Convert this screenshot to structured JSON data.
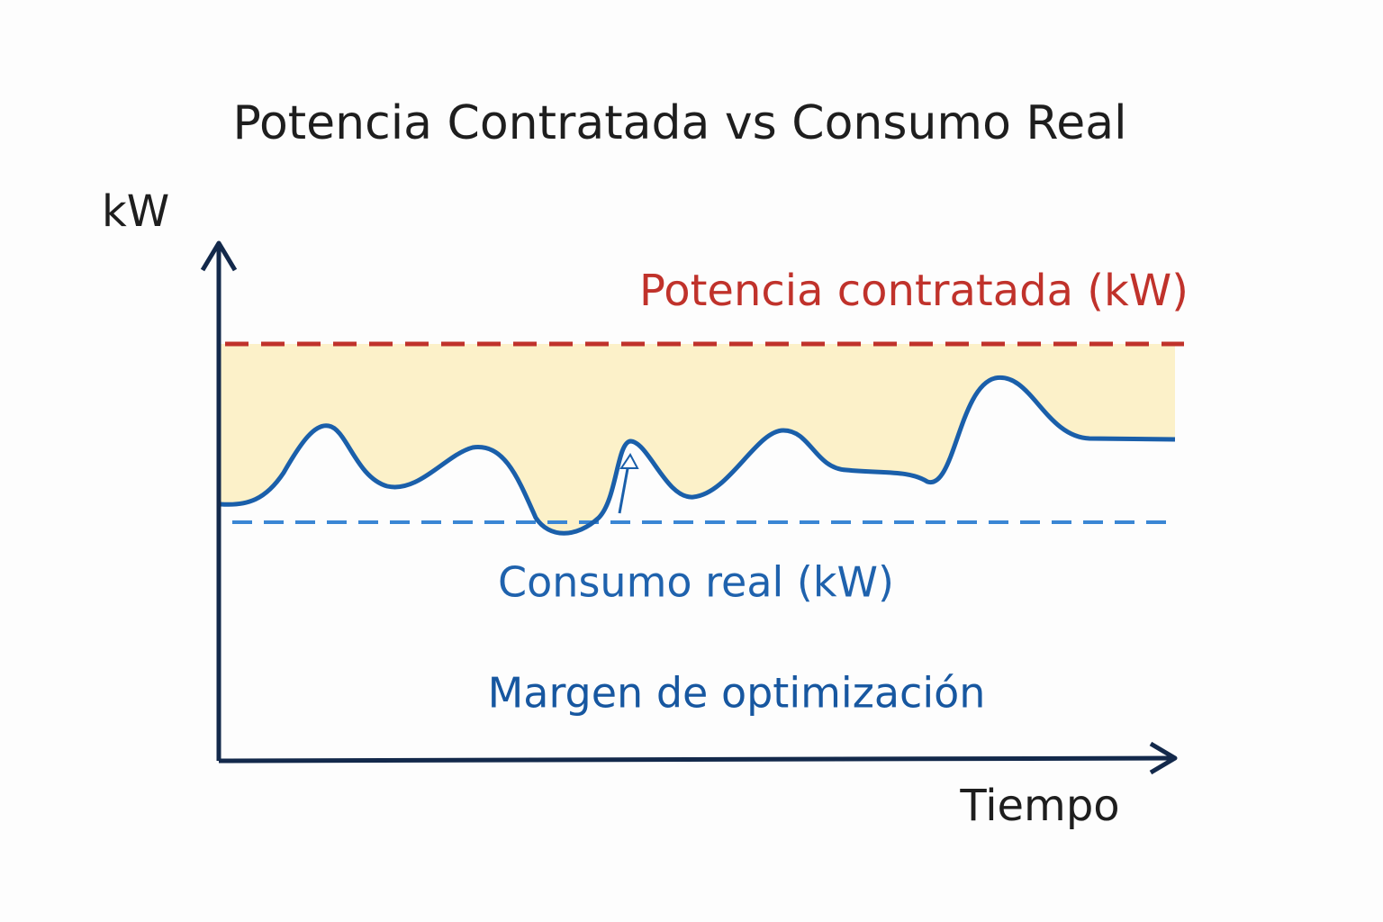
{
  "title": "Potencia Contratada vs Consumo Real",
  "y_axis_label": "kW",
  "x_axis_label": "Tiempo",
  "contracted_label": "Potencia contratada (kW)",
  "consumption_label": "Consumo real (kW)",
  "margin_label": "Margen de optimización"
}
